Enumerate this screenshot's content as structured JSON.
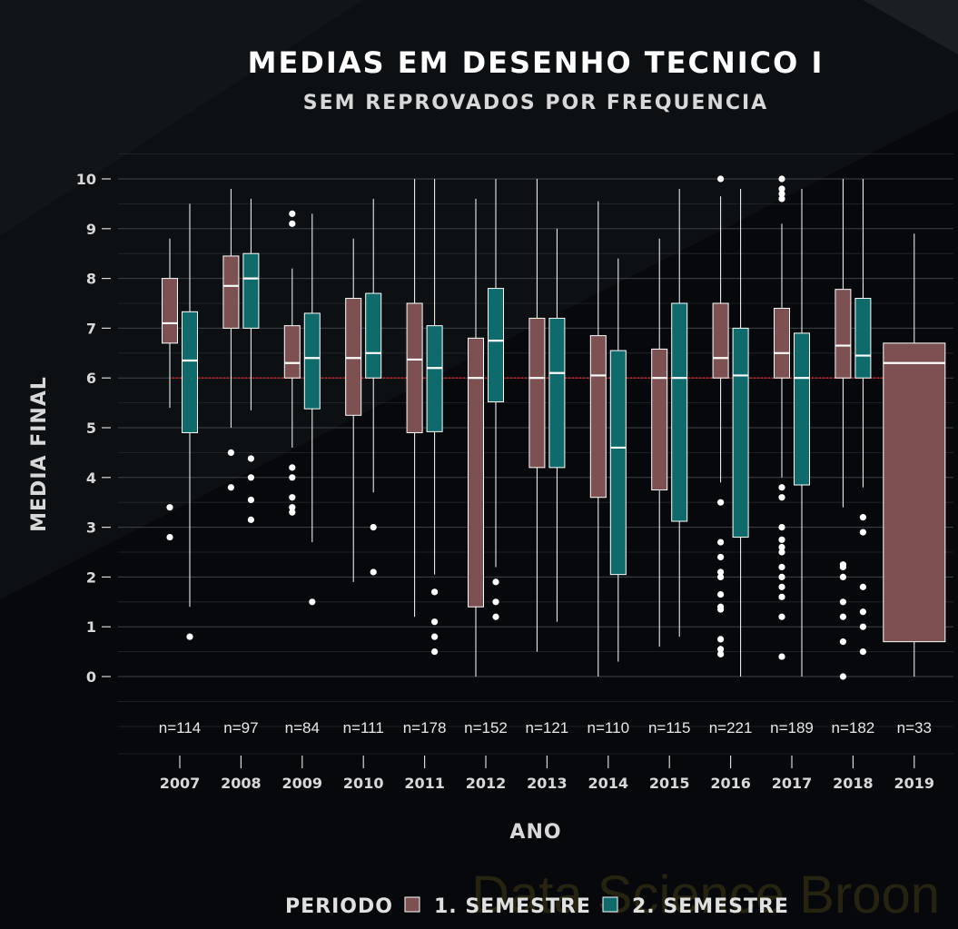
{
  "chart_data": {
    "type": "boxplot",
    "title": "MEDIAS EM DESENHO TECNICO I",
    "subtitle": "SEM REPROVADOS POR FREQUENCIA",
    "xlabel": "ANO",
    "ylabel": "MEDIA FINAL",
    "ylim": [
      -0.5,
      10.5
    ],
    "yticks": [
      0,
      1,
      2,
      3,
      4,
      5,
      6,
      7,
      8,
      9,
      10
    ],
    "reference_line": 6,
    "grid": true,
    "legend": {
      "title": "PERIODO",
      "position": "bottom",
      "entries": [
        "1. SEMESTRE",
        "2. SEMESTRE"
      ]
    },
    "colors": {
      "s1": "#7d5151",
      "s2": "#0f6b6b",
      "reference": "#d81a1a"
    },
    "watermark": "Data Science Broon",
    "categories": [
      "2007",
      "2008",
      "2009",
      "2010",
      "2011",
      "2012",
      "2013",
      "2014",
      "2015",
      "2016",
      "2017",
      "2018",
      "2019"
    ],
    "counts": [
      "n=114",
      "n=97",
      "n=84",
      "n=111",
      "n=178",
      "n=152",
      "n=121",
      "n=110",
      "n=115",
      "n=221",
      "n=189",
      "n=182",
      "n=33"
    ],
    "series": [
      {
        "name": "1. SEMESTRE",
        "boxes": [
          {
            "year": "2007",
            "min": 5.4,
            "q1": 6.7,
            "median": 7.1,
            "q3": 8.0,
            "max": 8.8,
            "outliers": [
              3.4,
              2.8
            ]
          },
          {
            "year": "2008",
            "min": 5.0,
            "q1": 7.0,
            "median": 7.85,
            "q3": 8.45,
            "max": 9.8,
            "outliers": [
              4.5,
              3.8
            ]
          },
          {
            "year": "2009",
            "min": 4.6,
            "q1": 6.0,
            "median": 6.3,
            "q3": 7.05,
            "max": 8.2,
            "outliers": [
              9.3,
              9.1,
              4.2,
              4.0,
              3.6,
              3.4,
              3.3
            ]
          },
          {
            "year": "2010",
            "min": 1.9,
            "q1": 5.25,
            "median": 6.4,
            "q3": 7.6,
            "max": 8.8,
            "outliers": []
          },
          {
            "year": "2011",
            "min": 1.2,
            "q1": 4.9,
            "median": 6.37,
            "q3": 7.5,
            "max": 10.0,
            "outliers": []
          },
          {
            "year": "2012",
            "min": 0.0,
            "q1": 1.4,
            "median": 6.0,
            "q3": 6.8,
            "max": 9.6,
            "outliers": []
          },
          {
            "year": "2013",
            "min": 0.5,
            "q1": 4.2,
            "median": 6.0,
            "q3": 7.2,
            "max": 10.0,
            "outliers": []
          },
          {
            "year": "2014",
            "min": 0.0,
            "q1": 3.6,
            "median": 6.05,
            "q3": 6.85,
            "max": 9.55,
            "outliers": []
          },
          {
            "year": "2015",
            "min": 0.6,
            "q1": 3.75,
            "median": 6.0,
            "q3": 6.58,
            "max": 8.8,
            "outliers": []
          },
          {
            "year": "2016",
            "min": 3.9,
            "q1": 6.0,
            "median": 6.4,
            "q3": 7.5,
            "max": 9.65,
            "outliers": [
              10.0,
              3.5,
              2.7,
              2.4,
              2.1,
              2.0,
              1.65,
              1.4,
              1.35,
              0.75,
              0.55,
              0.45
            ]
          },
          {
            "year": "2017",
            "min": 4.0,
            "q1": 6.0,
            "median": 6.5,
            "q3": 7.4,
            "max": 9.1,
            "outliers": [
              10.0,
              9.8,
              9.7,
              9.6,
              3.8,
              3.6,
              3.0,
              2.75,
              2.6,
              2.5,
              2.2,
              2.0,
              1.8,
              1.6,
              1.2,
              0.4
            ]
          },
          {
            "year": "2018",
            "min": 3.4,
            "q1": 6.0,
            "median": 6.65,
            "q3": 7.78,
            "max": 10.0,
            "outliers": [
              2.25,
              2.2,
              2.0,
              1.5,
              1.2,
              0.7,
              0.0
            ]
          },
          {
            "year": "2019",
            "min": 0.0,
            "q1": 0.7,
            "median": 6.3,
            "q3": 6.7,
            "max": 8.9,
            "outliers": []
          }
        ]
      },
      {
        "name": "2. SEMESTRE",
        "boxes": [
          {
            "year": "2007",
            "min": 1.4,
            "q1": 4.9,
            "median": 6.35,
            "q3": 7.33,
            "max": 9.5,
            "outliers": [
              0.8
            ]
          },
          {
            "year": "2008",
            "min": 5.35,
            "q1": 7.0,
            "median": 8.0,
            "q3": 8.5,
            "max": 9.6,
            "outliers": [
              4.38,
              4.0,
              3.55,
              3.15
            ]
          },
          {
            "year": "2009",
            "min": 2.7,
            "q1": 5.38,
            "median": 6.4,
            "q3": 7.3,
            "max": 9.3,
            "outliers": [
              1.5
            ]
          },
          {
            "year": "2010",
            "min": 3.7,
            "q1": 6.0,
            "median": 6.5,
            "q3": 7.7,
            "max": 9.6,
            "outliers": [
              3.0,
              2.1
            ]
          },
          {
            "year": "2011",
            "min": 2.05,
            "q1": 4.92,
            "median": 6.2,
            "q3": 7.05,
            "max": 10.0,
            "outliers": [
              1.7,
              1.1,
              0.8,
              0.5
            ]
          },
          {
            "year": "2012",
            "min": 2.2,
            "q1": 5.52,
            "median": 6.75,
            "q3": 7.8,
            "max": 10.0,
            "outliers": [
              1.9,
              1.5,
              1.2
            ]
          },
          {
            "year": "2013",
            "min": 1.1,
            "q1": 4.2,
            "median": 6.1,
            "q3": 7.2,
            "max": 9.0,
            "outliers": []
          },
          {
            "year": "2014",
            "min": 0.3,
            "q1": 2.05,
            "median": 4.6,
            "q3": 6.55,
            "max": 8.4,
            "outliers": []
          },
          {
            "year": "2015",
            "min": 0.8,
            "q1": 3.12,
            "median": 6.0,
            "q3": 7.5,
            "max": 9.8,
            "outliers": []
          },
          {
            "year": "2016",
            "min": 0.0,
            "q1": 2.8,
            "median": 6.05,
            "q3": 7.0,
            "max": 9.8,
            "outliers": []
          },
          {
            "year": "2017",
            "min": 0.0,
            "q1": 3.85,
            "median": 6.0,
            "q3": 6.9,
            "max": 9.8,
            "outliers": []
          },
          {
            "year": "2018",
            "min": 3.8,
            "q1": 6.0,
            "median": 6.45,
            "q3": 7.6,
            "max": 10.0,
            "outliers": [
              3.2,
              2.9,
              1.8,
              1.3,
              1.0,
              0.5
            ]
          }
        ]
      }
    ]
  }
}
